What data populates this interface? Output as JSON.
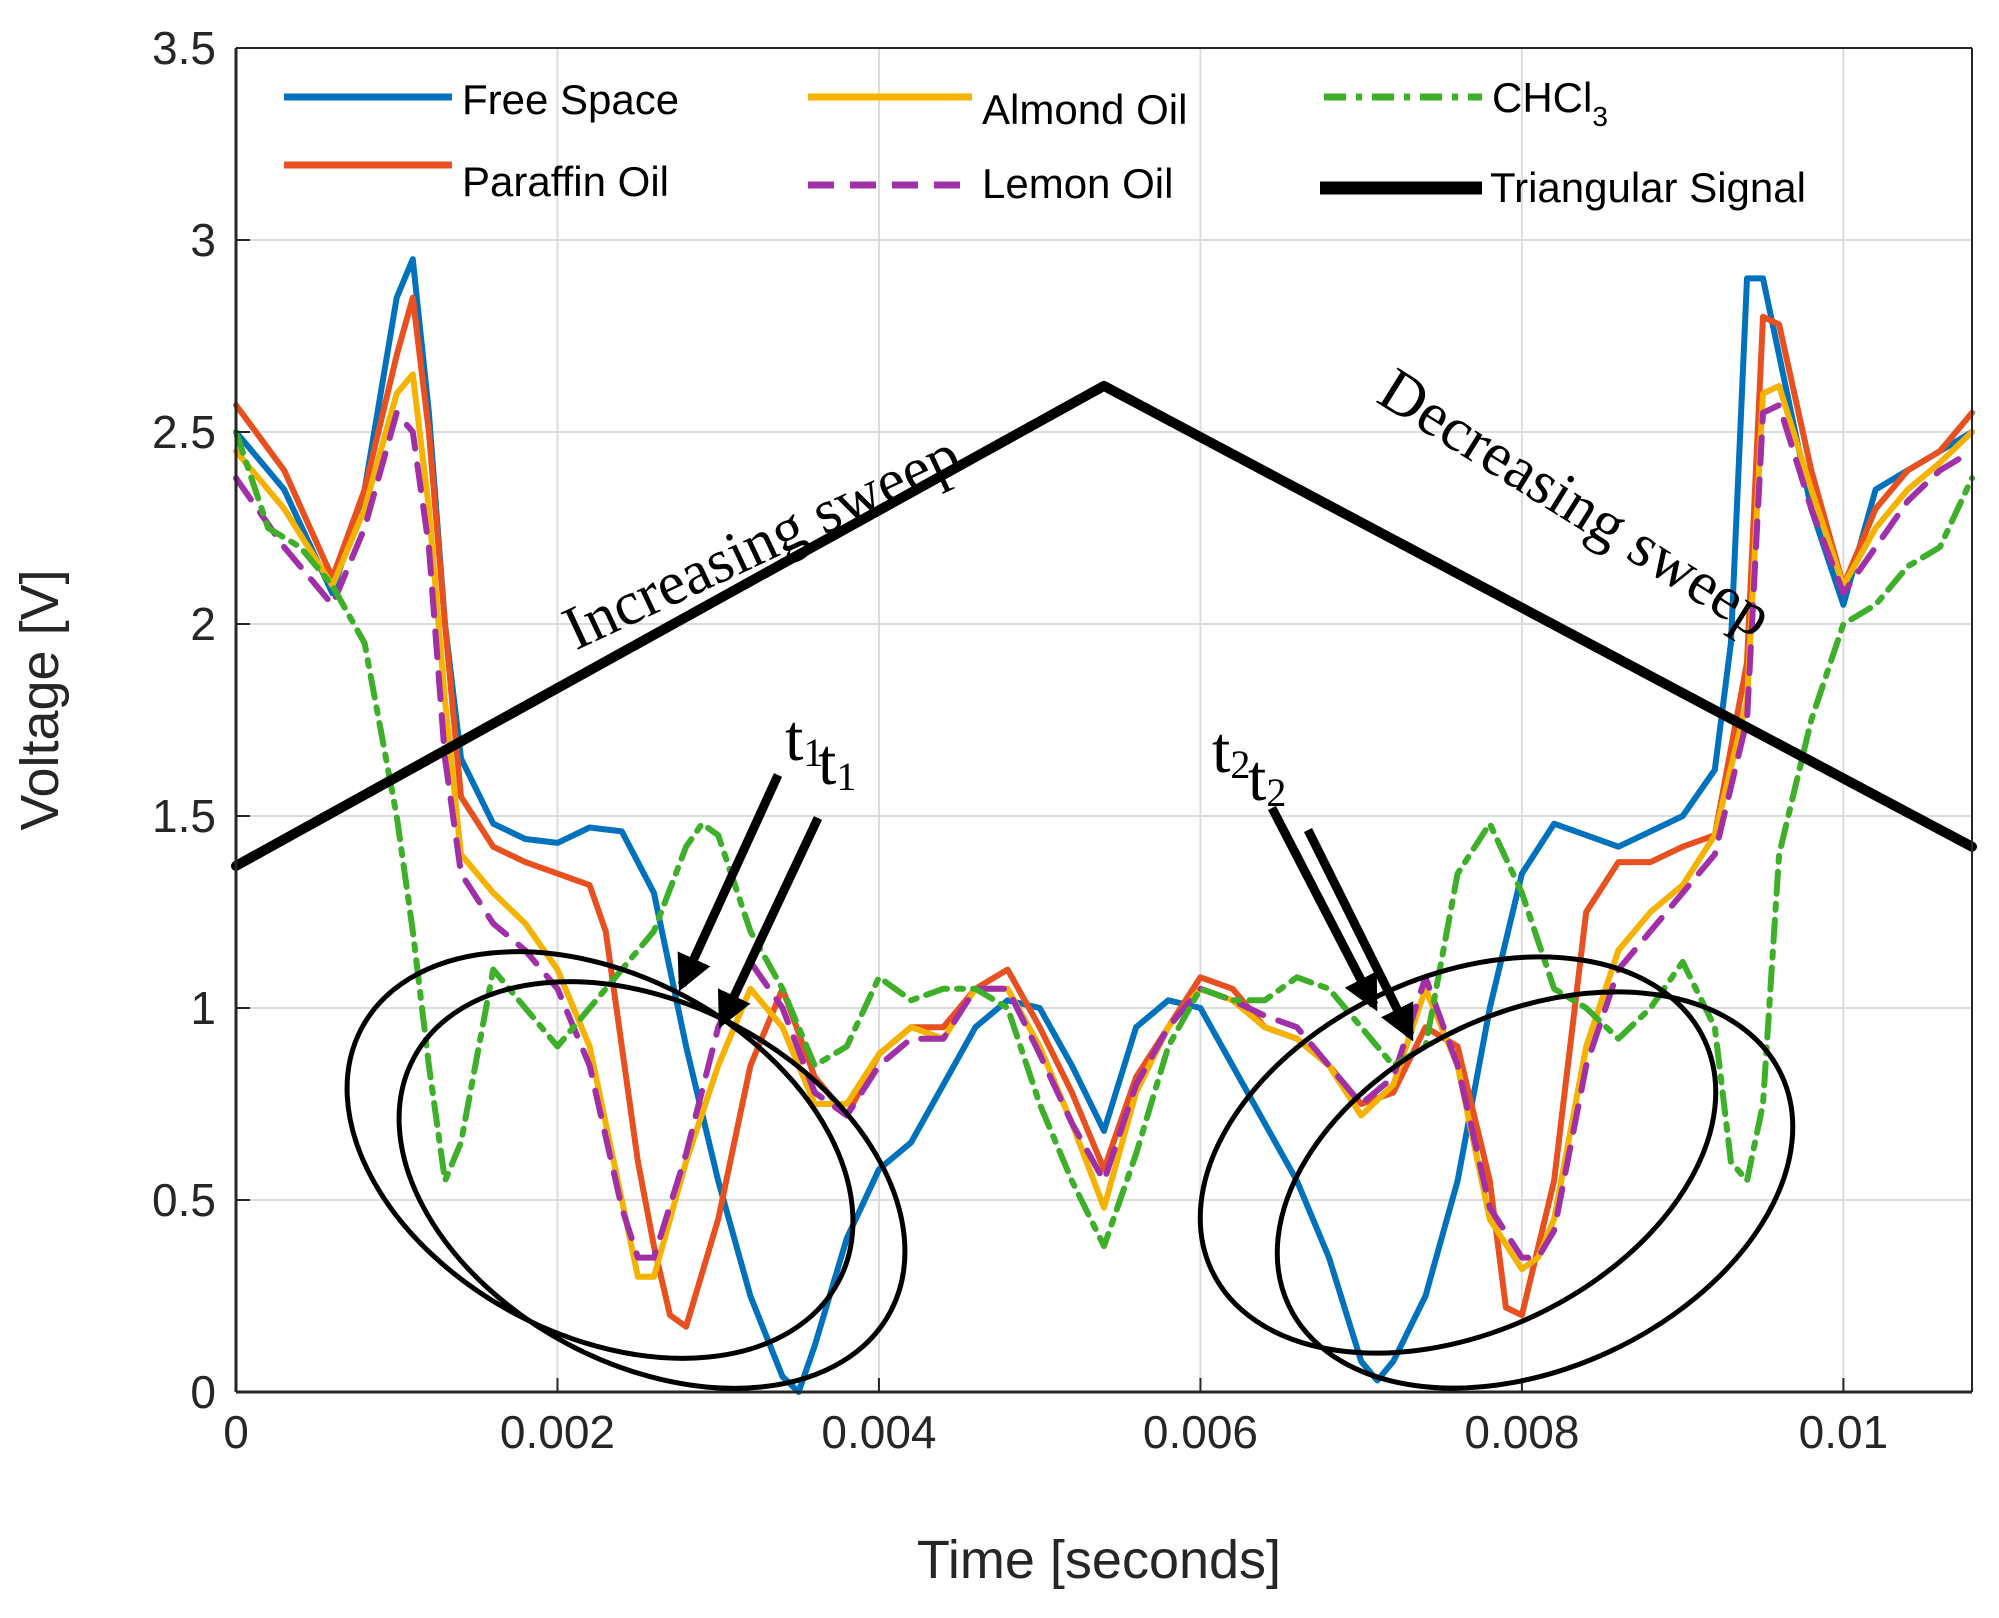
{
  "chart_data": {
    "type": "line",
    "title": "",
    "xlabel": "Time [seconds]",
    "ylabel": "Voltage [V]",
    "xlim": [
      0,
      0.0108
    ],
    "ylim": [
      0,
      3.5
    ],
    "grid": true,
    "legend_position": "top",
    "x_ticks": [
      0,
      0.002,
      0.004,
      0.006,
      0.008,
      0.01
    ],
    "x_tick_labels": [
      "0",
      "0.002",
      "0.004",
      "0.006",
      "0.008",
      "0.01"
    ],
    "y_ticks": [
      0,
      0.5,
      1,
      1.5,
      2,
      2.5,
      3,
      3.5
    ],
    "y_tick_labels": [
      "0",
      "0.5",
      "1",
      "1.5",
      "2",
      "2.5",
      "3",
      "3.5"
    ],
    "series": [
      {
        "name": "Free Space",
        "color": "#0072BD",
        "dash": "solid",
        "x": [
          0,
          0.0003,
          0.0006,
          0.0008,
          0.001,
          0.0011,
          0.0012,
          0.0013,
          0.0014,
          0.0016,
          0.0018,
          0.002,
          0.0022,
          0.0024,
          0.0026,
          0.0027,
          0.0028,
          0.003,
          0.0032,
          0.0034,
          0.0035,
          0.0036,
          0.0038,
          0.004,
          0.0042,
          0.0044,
          0.0046,
          0.0048,
          0.005,
          0.0052,
          0.0054,
          0.0056,
          0.0058,
          0.006,
          0.0062,
          0.0064,
          0.0066,
          0.0068,
          0.007,
          0.0071,
          0.0072,
          0.0074,
          0.0076,
          0.0078,
          0.008,
          0.0082,
          0.0084,
          0.0086,
          0.0088,
          0.009,
          0.0092,
          0.0093,
          0.0094,
          0.0095,
          0.0096,
          0.0098,
          0.01,
          0.0102,
          0.0104,
          0.0106,
          0.0108
        ],
        "values": [
          2.5,
          2.35,
          2.08,
          2.35,
          2.85,
          2.95,
          2.55,
          2.0,
          1.65,
          1.48,
          1.44,
          1.43,
          1.47,
          1.46,
          1.3,
          1.1,
          0.9,
          0.55,
          0.25,
          0.04,
          0.0,
          0.12,
          0.4,
          0.58,
          0.65,
          0.8,
          0.95,
          1.02,
          1.0,
          0.85,
          0.68,
          0.95,
          1.02,
          1.0,
          0.85,
          0.7,
          0.55,
          0.35,
          0.08,
          0.03,
          0.08,
          0.25,
          0.55,
          1.0,
          1.35,
          1.48,
          1.45,
          1.42,
          1.46,
          1.5,
          1.62,
          1.95,
          2.9,
          2.9,
          2.7,
          2.3,
          2.05,
          2.35,
          2.4,
          2.45,
          2.5
        ]
      },
      {
        "name": "Paraffin Oil",
        "color": "#E8501F",
        "dash": "solid",
        "x": [
          0,
          0.0003,
          0.0006,
          0.0008,
          0.001,
          0.0011,
          0.0012,
          0.0013,
          0.0014,
          0.0016,
          0.0018,
          0.002,
          0.0022,
          0.0023,
          0.0024,
          0.0025,
          0.0026,
          0.0027,
          0.0028,
          0.003,
          0.0032,
          0.0034,
          0.0036,
          0.0038,
          0.004,
          0.0042,
          0.0044,
          0.0046,
          0.0048,
          0.005,
          0.0052,
          0.0054,
          0.0056,
          0.0058,
          0.006,
          0.0062,
          0.0064,
          0.0066,
          0.0068,
          0.007,
          0.0072,
          0.0074,
          0.0076,
          0.0078,
          0.0079,
          0.008,
          0.0082,
          0.0084,
          0.0086,
          0.0088,
          0.009,
          0.0092,
          0.0094,
          0.0095,
          0.0096,
          0.0098,
          0.01,
          0.0102,
          0.0104,
          0.0106,
          0.0108
        ],
        "values": [
          2.57,
          2.4,
          2.12,
          2.35,
          2.7,
          2.85,
          2.5,
          2.0,
          1.55,
          1.42,
          1.38,
          1.35,
          1.32,
          1.2,
          0.9,
          0.6,
          0.38,
          0.2,
          0.17,
          0.45,
          0.85,
          1.05,
          0.82,
          0.72,
          0.88,
          0.95,
          0.95,
          1.05,
          1.1,
          0.95,
          0.78,
          0.58,
          0.82,
          0.95,
          1.08,
          1.05,
          0.95,
          0.92,
          0.85,
          0.75,
          0.78,
          0.95,
          0.9,
          0.55,
          0.22,
          0.2,
          0.55,
          1.25,
          1.38,
          1.38,
          1.42,
          1.45,
          1.9,
          2.8,
          2.78,
          2.4,
          2.1,
          2.3,
          2.4,
          2.45,
          2.55
        ]
      },
      {
        "name": "Almond Oil",
        "color": "#F5B200",
        "dash": "solid",
        "x": [
          0,
          0.0003,
          0.0006,
          0.0008,
          0.001,
          0.0011,
          0.0012,
          0.0013,
          0.0014,
          0.0016,
          0.0018,
          0.002,
          0.0022,
          0.0024,
          0.0025,
          0.0026,
          0.0028,
          0.003,
          0.0032,
          0.0034,
          0.0036,
          0.0038,
          0.004,
          0.0042,
          0.0044,
          0.0046,
          0.0048,
          0.005,
          0.0052,
          0.0054,
          0.0056,
          0.0058,
          0.006,
          0.0062,
          0.0064,
          0.0066,
          0.0068,
          0.007,
          0.0072,
          0.0074,
          0.0076,
          0.0078,
          0.008,
          0.0081,
          0.0082,
          0.0084,
          0.0086,
          0.0088,
          0.009,
          0.0092,
          0.0094,
          0.0095,
          0.0096,
          0.0098,
          0.01,
          0.0102,
          0.0104,
          0.0106,
          0.0108
        ],
        "values": [
          2.45,
          2.3,
          2.1,
          2.3,
          2.6,
          2.65,
          2.3,
          1.8,
          1.4,
          1.3,
          1.22,
          1.1,
          0.9,
          0.5,
          0.3,
          0.3,
          0.6,
          0.85,
          1.05,
          0.95,
          0.75,
          0.75,
          0.88,
          0.95,
          0.92,
          1.05,
          1.05,
          0.9,
          0.7,
          0.48,
          0.78,
          0.95,
          1.05,
          1.02,
          0.95,
          0.92,
          0.85,
          0.72,
          0.8,
          1.05,
          0.85,
          0.45,
          0.32,
          0.35,
          0.45,
          0.9,
          1.15,
          1.25,
          1.32,
          1.45,
          1.8,
          2.6,
          2.62,
          2.35,
          2.1,
          2.25,
          2.35,
          2.42,
          2.5
        ]
      },
      {
        "name": "Lemon Oil",
        "color": "#A02FA8",
        "dash": "dashed",
        "x": [
          0,
          0.0003,
          0.0006,
          0.0008,
          0.001,
          0.0011,
          0.0012,
          0.0013,
          0.0014,
          0.0016,
          0.0018,
          0.002,
          0.0022,
          0.0024,
          0.0025,
          0.0026,
          0.0028,
          0.003,
          0.0032,
          0.0034,
          0.0036,
          0.0038,
          0.004,
          0.0042,
          0.0044,
          0.0046,
          0.0048,
          0.005,
          0.0052,
          0.0054,
          0.0056,
          0.0058,
          0.006,
          0.0062,
          0.0064,
          0.0066,
          0.0068,
          0.007,
          0.0072,
          0.0074,
          0.0076,
          0.0078,
          0.008,
          0.0081,
          0.0082,
          0.0084,
          0.0086,
          0.0088,
          0.009,
          0.0092,
          0.0094,
          0.0095,
          0.0096,
          0.0098,
          0.01,
          0.0102,
          0.0104,
          0.0106,
          0.0108
        ],
        "values": [
          2.38,
          2.2,
          2.05,
          2.25,
          2.55,
          2.5,
          2.2,
          1.65,
          1.35,
          1.22,
          1.15,
          1.05,
          0.85,
          0.48,
          0.35,
          0.35,
          0.62,
          0.95,
          1.12,
          1.0,
          0.78,
          0.72,
          0.85,
          0.92,
          0.92,
          1.05,
          1.05,
          0.88,
          0.7,
          0.55,
          0.8,
          0.95,
          1.05,
          1.02,
          0.98,
          0.95,
          0.85,
          0.75,
          0.82,
          1.08,
          0.85,
          0.48,
          0.35,
          0.35,
          0.42,
          0.85,
          1.1,
          1.2,
          1.3,
          1.4,
          1.75,
          2.55,
          2.57,
          2.3,
          2.08,
          2.2,
          2.32,
          2.4,
          2.45
        ]
      },
      {
        "name": "CHCl3",
        "label_main": "CHCl",
        "label_sub": "3",
        "color": "#3DAF28",
        "dash": "dashdot",
        "x": [
          0,
          0.0002,
          0.0004,
          0.0006,
          0.0008,
          0.001,
          0.0011,
          0.0012,
          0.0013,
          0.0014,
          0.0016,
          0.0018,
          0.002,
          0.0022,
          0.0024,
          0.0026,
          0.0028,
          0.0029,
          0.003,
          0.0032,
          0.0034,
          0.0036,
          0.0038,
          0.004,
          0.0042,
          0.0044,
          0.0046,
          0.0048,
          0.005,
          0.0052,
          0.0054,
          0.0056,
          0.0058,
          0.006,
          0.0062,
          0.0064,
          0.0066,
          0.0068,
          0.007,
          0.0072,
          0.0074,
          0.0076,
          0.0078,
          0.008,
          0.0082,
          0.0084,
          0.0086,
          0.0088,
          0.009,
          0.0092,
          0.0093,
          0.0094,
          0.0095,
          0.0096,
          0.0098,
          0.01,
          0.0102,
          0.0104,
          0.0106,
          0.0108
        ],
        "values": [
          2.5,
          2.25,
          2.2,
          2.1,
          1.95,
          1.5,
          1.2,
          0.85,
          0.55,
          0.65,
          1.1,
          1.0,
          0.9,
          1.0,
          1.1,
          1.2,
          1.42,
          1.48,
          1.45,
          1.2,
          1.05,
          0.85,
          0.9,
          1.08,
          1.02,
          1.05,
          1.05,
          1.0,
          0.75,
          0.55,
          0.38,
          0.62,
          0.9,
          1.05,
          1.02,
          1.02,
          1.08,
          1.05,
          0.95,
          0.85,
          0.9,
          1.35,
          1.48,
          1.3,
          1.05,
          1.0,
          0.92,
          1.0,
          1.12,
          0.95,
          0.6,
          0.55,
          0.75,
          1.4,
          1.75,
          2.0,
          2.05,
          2.15,
          2.2,
          2.38
        ]
      },
      {
        "name": "Triangular Signal",
        "color": "#000000",
        "dash": "solid",
        "x": [
          0,
          0.0054,
          0.0108
        ],
        "values": [
          1.37,
          2.62,
          1.42
        ]
      }
    ],
    "annotations": [
      {
        "text": "Increasing sweep",
        "kind": "sweep-label-increasing"
      },
      {
        "text": "Decreasing sweep",
        "kind": "sweep-label-decreasing"
      },
      {
        "text": "t",
        "sub": "1",
        "kind": "time-marker-t1"
      },
      {
        "text": "t",
        "sub": "2",
        "kind": "time-marker-t2"
      }
    ]
  }
}
